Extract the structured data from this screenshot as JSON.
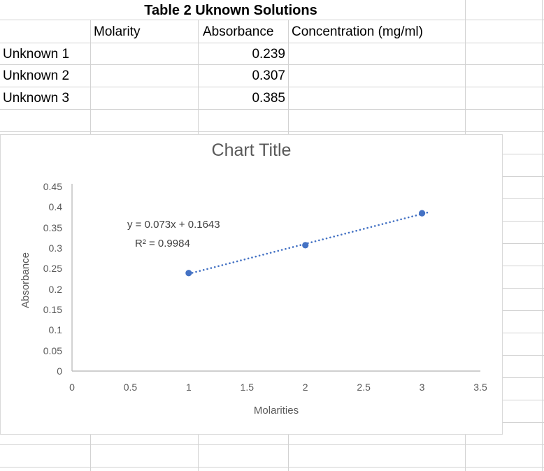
{
  "sheet": {
    "table": {
      "title": "Table 2 Uknown Solutions",
      "headers": {
        "molarity": "Molarity",
        "absorbance": "Absorbance",
        "concentration": "Concentration (mg/ml)"
      },
      "rows": [
        {
          "label": "Unknown 1",
          "molarity": "",
          "absorbance": "0.239",
          "concentration": ""
        },
        {
          "label": "Unknown 2",
          "molarity": "",
          "absorbance": "0.307",
          "concentration": ""
        },
        {
          "label": "Unknown 3",
          "molarity": "",
          "absorbance": "0.385",
          "concentration": ""
        }
      ]
    }
  },
  "chart_data": {
    "type": "scatter",
    "title": "Chart Title",
    "xlabel": "Molarities",
    "ylabel": "Absorbance",
    "x": [
      1,
      2,
      3
    ],
    "y": [
      0.239,
      0.307,
      0.385
    ],
    "xlim": [
      0,
      3.5
    ],
    "ylim": [
      0,
      0.45
    ],
    "x_tick_labels": [
      "0",
      "0.5",
      "1",
      "1.5",
      "2",
      "2.5",
      "3",
      "3.5"
    ],
    "y_tick_labels": [
      "0",
      "0.05",
      "0.1",
      "0.15",
      "0.2",
      "0.25",
      "0.3",
      "0.35",
      "0.4",
      "0.45"
    ],
    "gridlines": false,
    "legend": "none",
    "marker_color": "#4472C4",
    "trendline": {
      "slope": 0.073,
      "intercept": 0.1643,
      "equation_label": "y = 0.073x + 0.1643",
      "r2_label": "R² = 0.9984",
      "style": "dotted",
      "color": "#4472C4",
      "x_start": 1,
      "x_end": 3.07
    }
  },
  "colors": {
    "accent_blue": "#4472C4",
    "axis_line": "#BFBFBF",
    "grid_line": "#D2D2D2",
    "chart_text": "#595959",
    "equation_text": "#404040"
  }
}
